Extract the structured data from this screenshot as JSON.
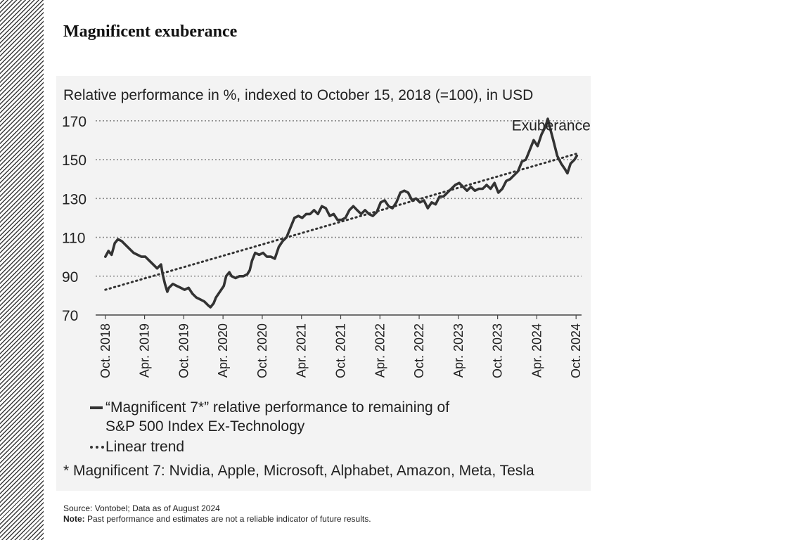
{
  "page": {
    "title": "Magnificent exuberance",
    "source": "Source: Vontobel; Data as of August 2024",
    "note_label": "Note:",
    "note_text": " Past performance and estimates are not a reliable indicator of future results."
  },
  "chart_data": {
    "type": "line",
    "subtitle": "Relative performance in %, indexed to October 15, 2018 (=100), in USD",
    "annotation": "Exuberance?",
    "ylim": [
      70,
      175
    ],
    "yticks": [
      70,
      90,
      110,
      130,
      150,
      170
    ],
    "xlim": [
      2018.79,
      2024.79
    ],
    "xticks": [
      {
        "label": "Oct. 2018",
        "t": 2018.79
      },
      {
        "label": "Apr. 2019",
        "t": 2019.29
      },
      {
        "label": "Oct. 2019",
        "t": 2019.79
      },
      {
        "label": "Apr. 2020",
        "t": 2020.29
      },
      {
        "label": "Oct. 2020",
        "t": 2020.79
      },
      {
        "label": "Apr. 2021",
        "t": 2021.29
      },
      {
        "label": "Oct. 2021",
        "t": 2021.79
      },
      {
        "label": "Apr. 2022",
        "t": 2022.29
      },
      {
        "label": "Oct. 2022",
        "t": 2022.79
      },
      {
        "label": "Apr. 2023",
        "t": 2023.29
      },
      {
        "label": "Oct. 2023",
        "t": 2023.79
      },
      {
        "label": "Apr. 2024",
        "t": 2024.29
      },
      {
        "label": "Oct. 2024",
        "t": 2024.79
      }
    ],
    "grid": "horizontal-dotted",
    "series": [
      {
        "name": "“Magnificent 7*” relative performance to remaining of",
        "name_line2": "S&P 500 Index Ex-Technology",
        "style": "solid",
        "points": [
          [
            2018.79,
            100
          ],
          [
            2018.83,
            103
          ],
          [
            2018.87,
            101
          ],
          [
            2018.91,
            107
          ],
          [
            2018.95,
            109
          ],
          [
            2019.0,
            108
          ],
          [
            2019.05,
            106
          ],
          [
            2019.1,
            104
          ],
          [
            2019.15,
            102
          ],
          [
            2019.2,
            101
          ],
          [
            2019.25,
            100
          ],
          [
            2019.3,
            100
          ],
          [
            2019.35,
            98
          ],
          [
            2019.4,
            96
          ],
          [
            2019.45,
            94
          ],
          [
            2019.5,
            96
          ],
          [
            2019.52,
            91
          ],
          [
            2019.55,
            86
          ],
          [
            2019.58,
            82
          ],
          [
            2019.6,
            84
          ],
          [
            2019.65,
            86
          ],
          [
            2019.7,
            85
          ],
          [
            2019.75,
            84
          ],
          [
            2019.8,
            83
          ],
          [
            2019.85,
            84
          ],
          [
            2019.9,
            81
          ],
          [
            2019.95,
            79
          ],
          [
            2020.0,
            78
          ],
          [
            2020.05,
            77
          ],
          [
            2020.1,
            75
          ],
          [
            2020.13,
            74
          ],
          [
            2020.17,
            76
          ],
          [
            2020.2,
            79
          ],
          [
            2020.25,
            82
          ],
          [
            2020.3,
            85
          ],
          [
            2020.33,
            90
          ],
          [
            2020.37,
            92
          ],
          [
            2020.4,
            90
          ],
          [
            2020.45,
            89
          ],
          [
            2020.5,
            90
          ],
          [
            2020.55,
            90
          ],
          [
            2020.6,
            91
          ],
          [
            2020.63,
            93
          ],
          [
            2020.66,
            98
          ],
          [
            2020.7,
            102
          ],
          [
            2020.75,
            101
          ],
          [
            2020.8,
            102
          ],
          [
            2020.85,
            100
          ],
          [
            2020.9,
            100
          ],
          [
            2020.95,
            99
          ],
          [
            2021.0,
            105
          ],
          [
            2021.05,
            108
          ],
          [
            2021.1,
            110
          ],
          [
            2021.15,
            115
          ],
          [
            2021.2,
            120
          ],
          [
            2021.25,
            121
          ],
          [
            2021.3,
            120
          ],
          [
            2021.35,
            122
          ],
          [
            2021.4,
            122
          ],
          [
            2021.45,
            124
          ],
          [
            2021.5,
            122
          ],
          [
            2021.55,
            126
          ],
          [
            2021.6,
            125
          ],
          [
            2021.65,
            121
          ],
          [
            2021.7,
            122
          ],
          [
            2021.75,
            119
          ],
          [
            2021.8,
            119
          ],
          [
            2021.85,
            120
          ],
          [
            2021.9,
            124
          ],
          [
            2021.95,
            126
          ],
          [
            2022.0,
            124
          ],
          [
            2022.05,
            122
          ],
          [
            2022.1,
            124
          ],
          [
            2022.15,
            122
          ],
          [
            2022.2,
            121
          ],
          [
            2022.25,
            123
          ],
          [
            2022.3,
            128
          ],
          [
            2022.35,
            129
          ],
          [
            2022.4,
            126
          ],
          [
            2022.45,
            125
          ],
          [
            2022.5,
            128
          ],
          [
            2022.55,
            133
          ],
          [
            2022.6,
            134
          ],
          [
            2022.65,
            133
          ],
          [
            2022.7,
            129
          ],
          [
            2022.75,
            130
          ],
          [
            2022.8,
            128
          ],
          [
            2022.85,
            129
          ],
          [
            2022.9,
            125
          ],
          [
            2022.95,
            128
          ],
          [
            2023.0,
            127
          ],
          [
            2023.05,
            131
          ],
          [
            2023.1,
            131
          ],
          [
            2023.15,
            133
          ],
          [
            2023.2,
            135
          ],
          [
            2023.25,
            137
          ],
          [
            2023.3,
            138
          ],
          [
            2023.35,
            136
          ],
          [
            2023.4,
            134
          ],
          [
            2023.45,
            136
          ],
          [
            2023.5,
            134
          ],
          [
            2023.55,
            135
          ],
          [
            2023.6,
            135
          ],
          [
            2023.65,
            137
          ],
          [
            2023.7,
            135
          ],
          [
            2023.75,
            138
          ],
          [
            2023.8,
            133
          ],
          [
            2023.85,
            135
          ],
          [
            2023.9,
            139
          ],
          [
            2023.95,
            140
          ],
          [
            2024.0,
            142
          ],
          [
            2024.05,
            144
          ],
          [
            2024.1,
            149
          ],
          [
            2024.15,
            150
          ],
          [
            2024.2,
            155
          ],
          [
            2024.25,
            160
          ],
          [
            2024.3,
            157
          ],
          [
            2024.35,
            163
          ],
          [
            2024.4,
            167
          ],
          [
            2024.43,
            171
          ],
          [
            2024.46,
            166
          ],
          [
            2024.5,
            160
          ],
          [
            2024.55,
            152
          ],
          [
            2024.6,
            148
          ],
          [
            2024.65,
            145
          ],
          [
            2024.68,
            143
          ],
          [
            2024.72,
            148
          ],
          [
            2024.77,
            150
          ],
          [
            2024.8,
            152
          ]
        ]
      },
      {
        "name": "Linear trend",
        "style": "dotted",
        "points": [
          [
            2018.79,
            83
          ],
          [
            2024.79,
            153
          ]
        ]
      }
    ],
    "footnote": "* Magnificent 7: Nvidia, Apple, Microsoft, Alphabet, Amazon, Meta, Tesla",
    "colors": {
      "line": "#333333",
      "grid": "#8a8a8a",
      "background": "#f3f3f3"
    }
  }
}
